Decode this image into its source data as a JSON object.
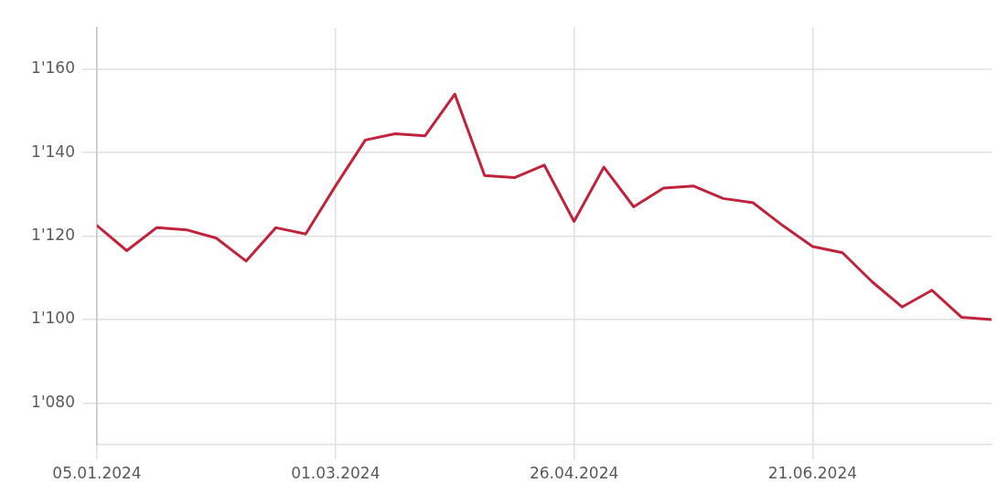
{
  "chart_data": {
    "type": "line",
    "x": [
      "2024-01-05",
      "2024-01-12",
      "2024-01-19",
      "2024-01-26",
      "2024-02-02",
      "2024-02-09",
      "2024-02-16",
      "2024-02-23",
      "2024-03-01",
      "2024-03-08",
      "2024-03-15",
      "2024-03-22",
      "2024-03-29",
      "2024-04-05",
      "2024-04-12",
      "2024-04-19",
      "2024-04-26",
      "2024-05-03",
      "2024-05-10",
      "2024-05-17",
      "2024-05-24",
      "2024-05-31",
      "2024-06-07",
      "2024-06-14",
      "2024-06-21",
      "2024-06-28",
      "2024-07-05",
      "2024-07-12",
      "2024-07-19",
      "2024-07-26",
      "2024-08-02"
    ],
    "series": [
      {
        "color": "#c0233b",
        "values": [
          1122.5,
          1116.5,
          1122,
          1121.5,
          1119.5,
          1114,
          1122,
          1120.5,
          1132,
          1143,
          1144.5,
          1144,
          1154,
          1134.5,
          1134,
          1137,
          1123.5,
          1136.5,
          1127,
          1131.5,
          1132,
          1129,
          1128,
          1122.5,
          1117.5,
          1116,
          1109,
          1103,
          1107,
          1100.5,
          1100
        ]
      }
    ],
    "xlim": [
      "2024-01-05",
      "2024-08-02"
    ],
    "xticks": [
      {
        "value": "2024-01-05",
        "label": "05.01.2024"
      },
      {
        "value": "2024-03-01",
        "label": "01.03.2024"
      },
      {
        "value": "2024-04-26",
        "label": "26.04.2024"
      },
      {
        "value": "2024-06-21",
        "label": "21.06.2024"
      }
    ],
    "ylim": [
      1070,
      1170
    ],
    "yticks": [
      {
        "value": 1080,
        "label": "1'080"
      },
      {
        "value": 1100,
        "label": "1'100"
      },
      {
        "value": 1120,
        "label": "1'120"
      },
      {
        "value": 1140,
        "label": "1'140"
      },
      {
        "value": 1160,
        "label": "1'160"
      }
    ],
    "grid": true,
    "legend": false,
    "marker": "none",
    "line_style": "solid"
  }
}
